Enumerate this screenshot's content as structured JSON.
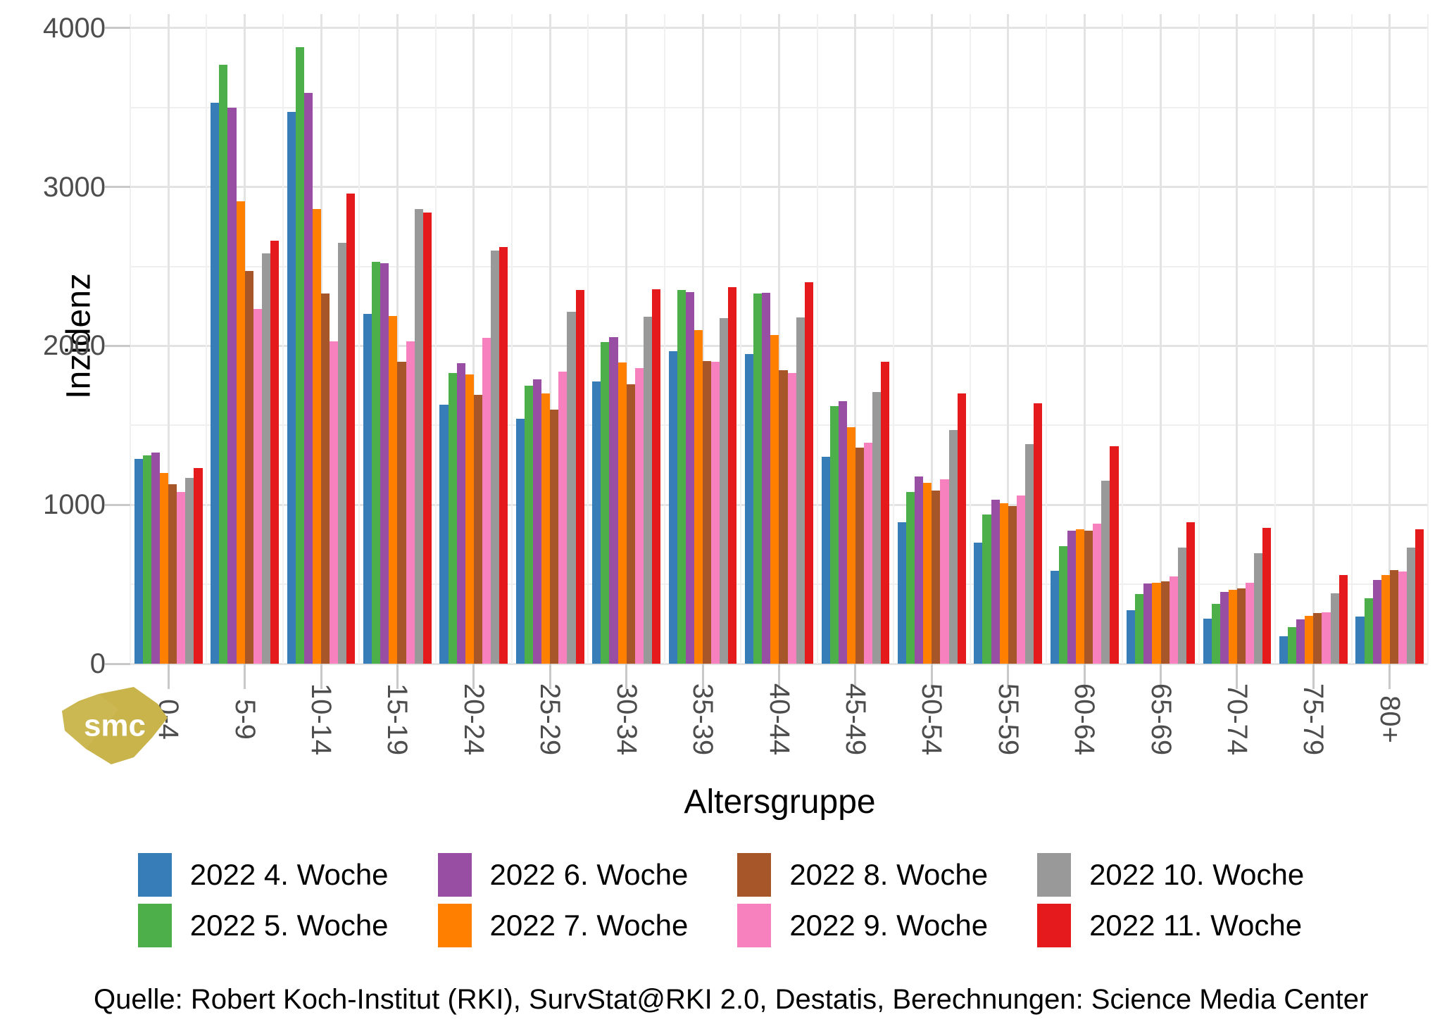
{
  "source": {
    "text": "Quelle: Robert Koch-Institut (RKI), SurvStat@RKI 2.0, Destatis, Berechnungen: Science Media Center"
  },
  "logo": {
    "text": "smc",
    "color": "#c9b44c"
  },
  "palette": {
    "blue": "#377EB8",
    "green": "#4DAF4A",
    "purple": "#984EA3",
    "orange": "#FF7F00",
    "brown": "#A65628",
    "pink": "#F781BF",
    "gray": "#999999",
    "red": "#E41A1C"
  },
  "chart_data": {
    "type": "bar",
    "title": "",
    "xlabel": "Altersgruppe",
    "ylabel": "Inzidenz",
    "ylim": [
      0,
      4000
    ],
    "y_major_ticks": [
      0,
      1000,
      2000,
      3000,
      4000
    ],
    "y_minor_ticks": [
      500,
      1500,
      2500,
      3500
    ],
    "grid": true,
    "legend_position": "bottom",
    "categories": [
      "0-4",
      "5-9",
      "10-14",
      "15-19",
      "20-24",
      "25-29",
      "30-34",
      "35-39",
      "40-44",
      "45-49",
      "50-54",
      "55-59",
      "60-64",
      "65-69",
      "70-74",
      "75-79",
      "80+"
    ],
    "series": [
      {
        "name": "2022 4. Woche",
        "color": "#377EB8",
        "values": [
          1290,
          3530,
          3470,
          2200,
          1630,
          1540,
          1775,
          1965,
          1950,
          1300,
          890,
          760,
          585,
          335,
          285,
          175,
          295
        ]
      },
      {
        "name": "2022 5. Woche",
        "color": "#4DAF4A",
        "values": [
          1310,
          3770,
          3880,
          2530,
          1830,
          1750,
          2025,
          2350,
          2330,
          1620,
          1080,
          940,
          740,
          440,
          375,
          230,
          410
        ]
      },
      {
        "name": "2022 6. Woche",
        "color": "#984EA3",
        "values": [
          1330,
          3500,
          3590,
          2520,
          1890,
          1790,
          2055,
          2340,
          2335,
          1650,
          1180,
          1030,
          835,
          505,
          450,
          280,
          525
        ]
      },
      {
        "name": "2022 7. Woche",
        "color": "#FF7F00",
        "values": [
          1200,
          2910,
          2860,
          2190,
          1820,
          1700,
          1895,
          2100,
          2070,
          1490,
          1140,
          1010,
          845,
          510,
          465,
          300,
          560
        ]
      },
      {
        "name": "2022 8. Woche",
        "color": "#A65628",
        "values": [
          1130,
          2470,
          2330,
          1900,
          1690,
          1600,
          1760,
          1905,
          1845,
          1360,
          1090,
          990,
          835,
          520,
          475,
          320,
          590
        ]
      },
      {
        "name": "2022 9. Woche",
        "color": "#F781BF",
        "values": [
          1080,
          2230,
          2030,
          2030,
          2050,
          1840,
          1860,
          1900,
          1830,
          1390,
          1160,
          1060,
          880,
          550,
          510,
          325,
          580
        ]
      },
      {
        "name": "2022 10. Woche",
        "color": "#999999",
        "values": [
          1170,
          2580,
          2650,
          2860,
          2600,
          2215,
          2185,
          2175,
          2180,
          1710,
          1470,
          1380,
          1150,
          730,
          695,
          445,
          730
        ]
      },
      {
        "name": "2022 11. Woche",
        "color": "#E41A1C",
        "values": [
          1230,
          2660,
          2960,
          2840,
          2620,
          2350,
          2355,
          2370,
          2400,
          1900,
          1700,
          1640,
          1370,
          890,
          855,
          560,
          845
        ]
      }
    ]
  }
}
